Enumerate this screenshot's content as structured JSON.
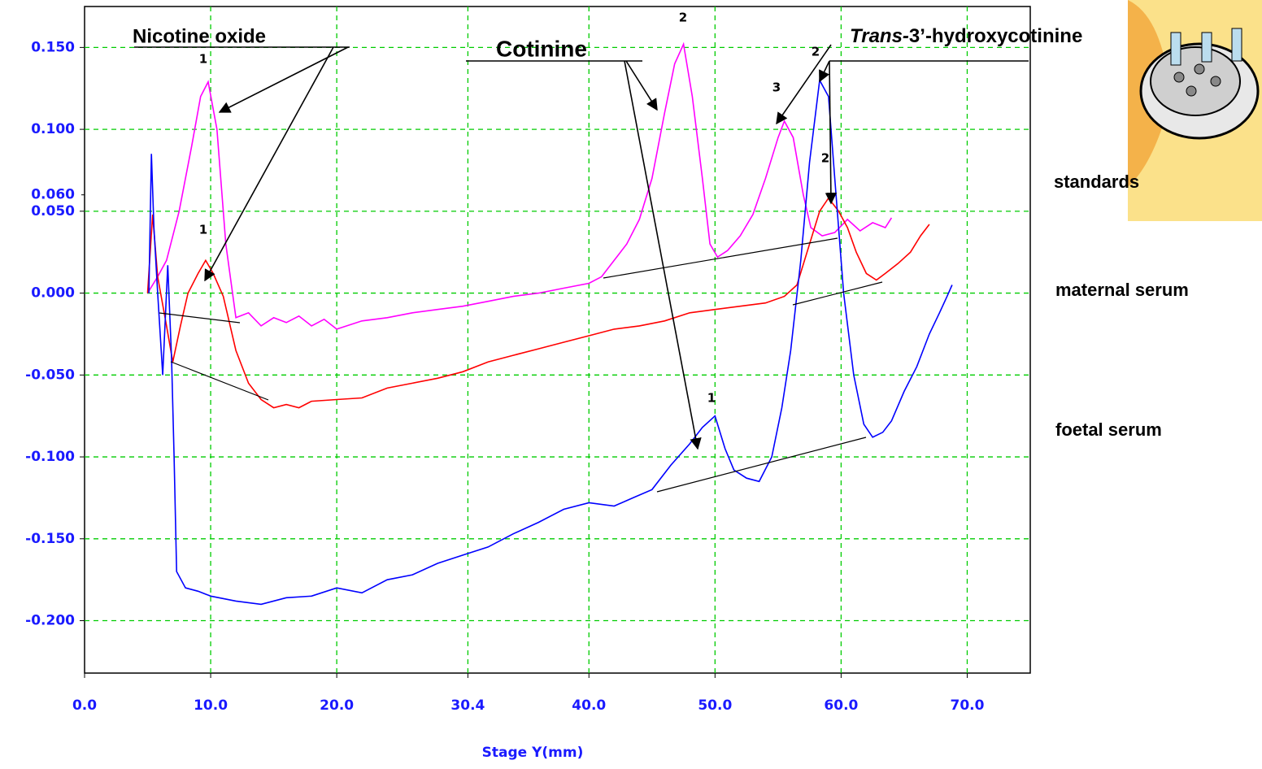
{
  "chart_data": {
    "type": "line",
    "x_label": "Stage Y(mm)",
    "xlim": [
      0,
      75
    ],
    "ylim": [
      -0.232,
      0.175
    ],
    "xticks": [
      {
        "value": 0,
        "label": "0.0"
      },
      {
        "value": 10,
        "label": "10.0"
      },
      {
        "value": 20,
        "label": "20.0"
      },
      {
        "value": 30.4,
        "label": "30.4"
      },
      {
        "value": 40,
        "label": "40.0"
      },
      {
        "value": 50,
        "label": "50.0"
      },
      {
        "value": 60,
        "label": "60.0"
      },
      {
        "value": 70,
        "label": "70.0"
      }
    ],
    "yticks": [
      {
        "value": 0.15,
        "label": "0.150"
      },
      {
        "value": 0.1,
        "label": "0.100"
      },
      {
        "value": 0.05,
        "label": "0.050"
      },
      {
        "value": 0,
        "label": "0.000"
      },
      {
        "value": -0.05,
        "label": "-0.050"
      },
      {
        "value": -0.1,
        "label": "-0.100"
      },
      {
        "value": -0.15,
        "label": "-0.150"
      },
      {
        "value": -0.2,
        "label": "-0.200"
      }
    ],
    "y_marker": {
      "value": 0.06,
      "label": "0.060"
    },
    "grid": true,
    "grid_color": "#00cc00",
    "annotations": {
      "nicotine_oxide": "Nicotine oxide",
      "cotinine": "Cotinine",
      "hydroxycotinine_italic": "Trans-",
      "hydroxycotinine": "3’-hydroxycotinine",
      "peaks": [
        "1",
        "1",
        "2",
        "3",
        "2",
        "2",
        "1"
      ]
    },
    "series": [
      {
        "name": "standards",
        "color": "#ff00ff",
        "x": [
          5,
          5.8,
          6.5,
          7.5,
          8.5,
          9.2,
          9.8,
          10.5,
          11.2,
          12,
          13,
          14,
          15,
          16,
          17,
          18,
          19,
          20,
          22,
          24,
          26,
          28,
          30,
          32,
          34,
          36,
          38,
          40,
          41,
          42,
          43,
          44,
          45,
          46,
          46.8,
          47.5,
          48.2,
          49,
          49.6,
          50.2,
          51,
          52,
          53,
          54,
          55,
          55.5,
          56.2,
          57,
          57.6,
          58.5,
          59.5,
          60.5,
          61.5,
          62.5,
          63.5,
          64
        ],
        "values": [
          0,
          0.01,
          0.02,
          0.05,
          0.09,
          0.12,
          0.129,
          0.1,
          0.03,
          -0.015,
          -0.012,
          -0.02,
          -0.015,
          -0.018,
          -0.014,
          -0.02,
          -0.016,
          -0.022,
          -0.017,
          -0.015,
          -0.012,
          -0.01,
          -0.008,
          -0.005,
          -0.002,
          0.0,
          0.003,
          0.006,
          0.01,
          0.02,
          0.03,
          0.045,
          0.07,
          0.11,
          0.14,
          0.152,
          0.12,
          0.07,
          0.03,
          0.022,
          0.026,
          0.035,
          0.048,
          0.07,
          0.095,
          0.105,
          0.095,
          0.06,
          0.04,
          0.035,
          0.037,
          0.045,
          0.038,
          0.043,
          0.04,
          0.046
        ]
      },
      {
        "name": "maternal serum",
        "color": "#ff0000",
        "x": [
          5,
          5.4,
          5.8,
          6.5,
          7,
          7.6,
          8.2,
          9,
          9.6,
          10.2,
          11,
          12,
          13,
          14,
          15,
          16,
          17,
          18,
          20,
          22,
          24,
          26,
          28,
          30,
          32,
          34,
          36,
          38,
          40,
          42,
          44,
          46,
          48,
          50,
          52,
          54,
          55.5,
          56.5,
          57.5,
          58.3,
          59,
          59.8,
          60.5,
          61.2,
          62,
          62.8,
          63.5,
          64.5,
          65.5,
          66.3,
          67
        ],
        "values": [
          0,
          0.048,
          0.01,
          -0.02,
          -0.042,
          -0.02,
          0.0,
          0.012,
          0.02,
          0.012,
          -0.002,
          -0.035,
          -0.055,
          -0.065,
          -0.07,
          -0.068,
          -0.07,
          -0.066,
          -0.065,
          -0.064,
          -0.058,
          -0.055,
          -0.052,
          -0.048,
          -0.042,
          -0.038,
          -0.034,
          -0.03,
          -0.026,
          -0.022,
          -0.02,
          -0.017,
          -0.012,
          -0.01,
          -0.008,
          -0.006,
          -0.002,
          0.005,
          0.03,
          0.05,
          0.058,
          0.05,
          0.04,
          0.025,
          0.012,
          0.008,
          0.012,
          0.018,
          0.025,
          0.035,
          0.042
        ]
      },
      {
        "name": "foetal serum",
        "color": "#0000ff",
        "x": [
          5.1,
          5.3,
          5.5,
          5.8,
          6.2,
          6.6,
          6.9,
          7.1,
          7.3,
          8,
          9,
          10,
          12,
          14,
          16,
          18,
          20,
          22,
          24,
          26,
          28,
          30,
          32,
          34,
          36,
          38,
          40,
          42,
          43.5,
          45,
          46.5,
          48,
          49,
          50,
          50.8,
          51.5,
          52.5,
          53.5,
          54.5,
          55.3,
          56,
          56.8,
          57.5,
          58.3,
          59,
          59.5,
          60.2,
          61,
          61.8,
          62.5,
          63.3,
          64,
          65,
          66,
          67,
          67.8,
          68.4,
          68.8
        ],
        "values": [
          0,
          0.085,
          0.04,
          0.0,
          -0.05,
          0.017,
          -0.04,
          -0.1,
          -0.17,
          -0.18,
          -0.182,
          -0.185,
          -0.188,
          -0.19,
          -0.186,
          -0.185,
          -0.18,
          -0.183,
          -0.175,
          -0.172,
          -0.165,
          -0.16,
          -0.155,
          -0.147,
          -0.14,
          -0.132,
          -0.128,
          -0.13,
          -0.125,
          -0.12,
          -0.105,
          -0.092,
          -0.082,
          -0.075,
          -0.095,
          -0.108,
          -0.113,
          -0.115,
          -0.1,
          -0.07,
          -0.035,
          0.02,
          0.08,
          0.13,
          0.12,
          0.07,
          0.0,
          -0.05,
          -0.08,
          -0.088,
          -0.085,
          -0.078,
          -0.06,
          -0.045,
          -0.025,
          -0.012,
          -0.002,
          0.005
        ]
      }
    ]
  }
}
